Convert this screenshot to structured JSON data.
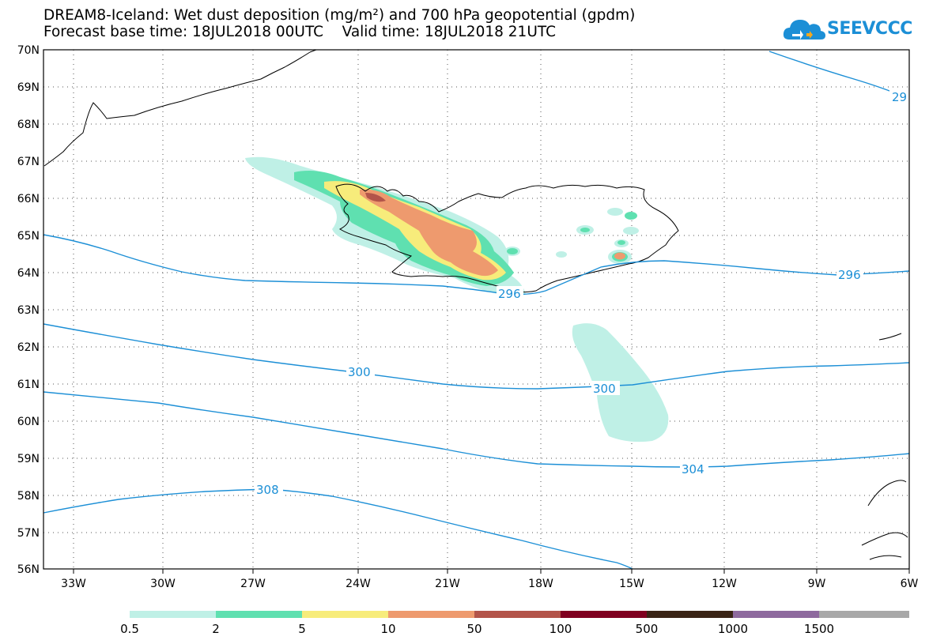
{
  "title_line1": "DREAM8-Iceland: Wet dust deposition (mg/m²) and 700 hPa geopotential (gpdm)",
  "title_line2": "Forecast base time: 18JUL2018 00UTC    Valid time: 18JUL2018 21UTC",
  "logo": {
    "text": "SEEVCCC",
    "icon": "cloud-icon",
    "color": "#1c8fd6"
  },
  "map": {
    "lat_labels": [
      "70N",
      "69N",
      "68N",
      "67N",
      "66N",
      "65N",
      "64N",
      "63N",
      "62N",
      "61N",
      "60N",
      "59N",
      "58N",
      "57N",
      "56N"
    ],
    "lon_labels": [
      "33W",
      "30W",
      "27W",
      "24W",
      "21W",
      "18W",
      "15W",
      "12W",
      "9W",
      "6W"
    ],
    "contour_color": "#1c8fd6",
    "contour_labels": [
      "29",
      "296",
      "296",
      "300",
      "300",
      "304",
      "308"
    ]
  },
  "colorbar": {
    "colors": [
      "#bff0e6",
      "#5fe0b0",
      "#f7ec7b",
      "#ee9a6e",
      "#b3544a",
      "#800020",
      "#3a2416",
      "#8e6a9e",
      "#a8a8a8"
    ],
    "labels": [
      "0.5",
      "2",
      "5",
      "10",
      "50",
      "100",
      "500",
      "1000",
      "1500"
    ]
  }
}
